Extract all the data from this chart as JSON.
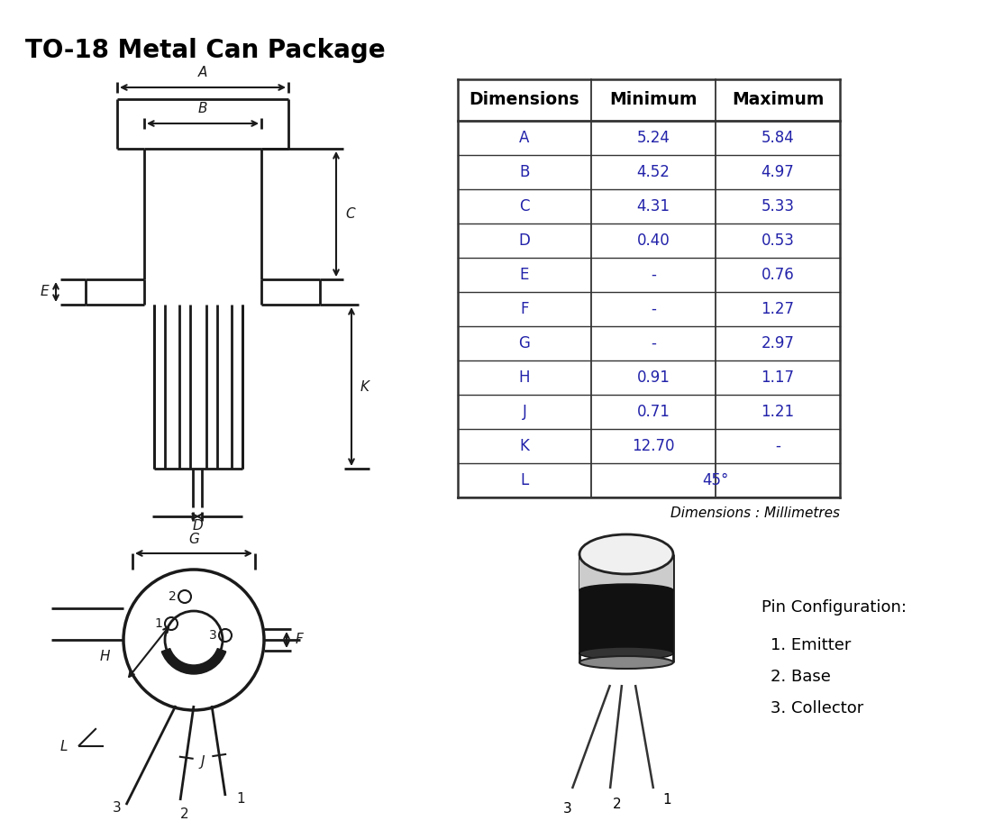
{
  "title": "TO-18 Metal Can Package",
  "title_fontsize": 20,
  "bg_color": "#ffffff",
  "table_headers": [
    "Dimensions",
    "Minimum",
    "Maximum"
  ],
  "table_data": [
    [
      "A",
      "5.24",
      "5.84"
    ],
    [
      "B",
      "4.52",
      "4.97"
    ],
    [
      "C",
      "4.31",
      "5.33"
    ],
    [
      "D",
      "0.40",
      "0.53"
    ],
    [
      "E",
      "-",
      "0.76"
    ],
    [
      "F",
      "-",
      "1.27"
    ],
    [
      "G",
      "-",
      "2.97"
    ],
    [
      "H",
      "0.91",
      "1.17"
    ],
    [
      "J",
      "0.71",
      "1.21"
    ],
    [
      "K",
      "12.70",
      "-"
    ],
    [
      "L",
      "45°",
      ""
    ]
  ],
  "table_note": "Dimensions : Millimetres",
  "pin_config_title": "Pin Configuration:",
  "pin_config": [
    "1. Emitter",
    "2. Base",
    "3. Collector"
  ],
  "lc": "#1a1a1a",
  "blue": "#2222aa"
}
